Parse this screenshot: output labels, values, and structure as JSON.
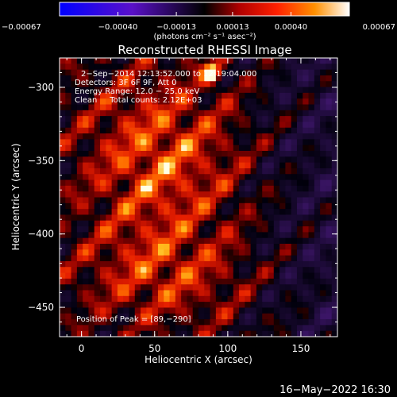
{
  "chart_data": {
    "type": "heatmap",
    "title": "Reconstructed RHESSI Image",
    "xlabel": "Heliocentric X (arcsec)",
    "ylabel": "Heliocentric Y (arcsec)",
    "xlim": [
      -15,
      175
    ],
    "ylim": [
      -470,
      -280
    ],
    "xticks": [
      0,
      50,
      100,
      150
    ],
    "yticks": [
      -300,
      -350,
      -400,
      -450
    ],
    "xtick_labels": [
      "0",
      "50",
      "100",
      "150"
    ],
    "ytick_labels": [
      "−300",
      "−350",
      "−400",
      "−450"
    ],
    "colorbar": {
      "ticks": [
        -0.00067,
        -0.0004,
        -0.00013,
        0.00013,
        0.0004,
        0.00067
      ],
      "tick_labels": [
        "−0.00067",
        "−0.00040",
        "−0.00013",
        "0.00013",
        "0.00040",
        "0.00067"
      ],
      "unit_label": "(photons cm⁻² s⁻¹ asec⁻²)",
      "range": [
        -0.00067,
        0.00067
      ]
    },
    "annotations": {
      "time": "2−Sep−2014 12:13:52.000 to 12:19:04.000",
      "detectors": "Detectors: 3F 6F 9F, Att 0",
      "energy": "Energy Range: 12.0 − 25.0 keV",
      "clean": "Clean     Total counts: 2.12E+03",
      "peak": "Position of Peak = [89,−290]"
    },
    "peak": [
      89,
      -290
    ]
  },
  "footer": {
    "date": "16−May−2022 16:30"
  }
}
